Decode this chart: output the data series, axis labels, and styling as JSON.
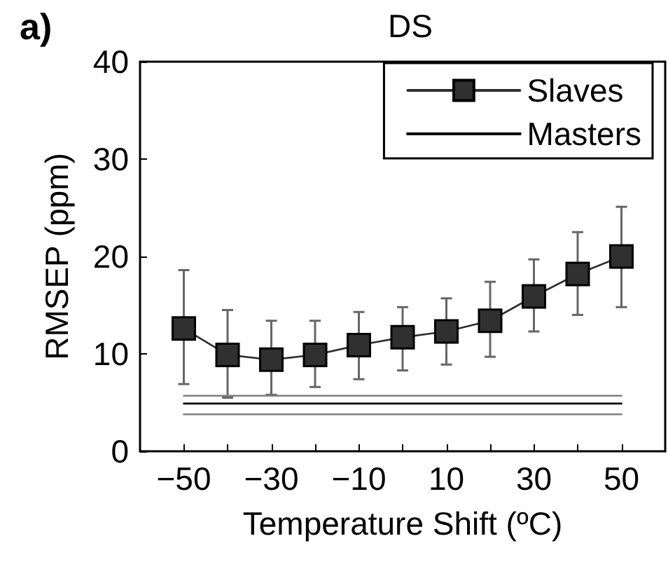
{
  "chart_data": {
    "type": "line",
    "title": "DS",
    "xlabel": "Temperature Shift (ºC)",
    "ylabel": "RMSEP (ppm)",
    "annotations": [
      "a)"
    ],
    "x": [
      -50,
      -40,
      -30,
      -20,
      -10,
      0,
      10,
      20,
      30,
      40,
      50
    ],
    "series": [
      {
        "name": "Slaves",
        "color": "#303030",
        "marker": "square",
        "values": [
          12.6,
          9.9,
          9.4,
          9.9,
          10.9,
          11.7,
          12.3,
          13.4,
          15.9,
          18.2,
          20.0
        ],
        "errors": [
          [
            6.9,
            18.6
          ],
          [
            5.5,
            14.5
          ],
          [
            5.8,
            13.4
          ],
          [
            6.6,
            13.4
          ],
          [
            7.4,
            14.3
          ],
          [
            8.3,
            14.8
          ],
          [
            8.9,
            15.7
          ],
          [
            9.7,
            17.4
          ],
          [
            12.3,
            19.7
          ],
          [
            14.0,
            22.5
          ],
          [
            14.8,
            25.1
          ]
        ]
      },
      {
        "name": "Masters",
        "color": "#000000",
        "marker": "none",
        "values": [
          4.9,
          4.9,
          4.9,
          4.9,
          4.9,
          4.9,
          4.9,
          4.9,
          4.9,
          4.9,
          4.9
        ]
      },
      {
        "color": "#808080",
        "marker": "none",
        "values": [
          5.7,
          5.7,
          5.7,
          5.7,
          5.7,
          5.7,
          5.7,
          5.7,
          5.7,
          5.7,
          5.7
        ]
      },
      {
        "color": "#808080",
        "marker": "none",
        "values": [
          3.8,
          3.8,
          3.8,
          3.8,
          3.8,
          3.8,
          3.8,
          3.8,
          3.8,
          3.8,
          3.8
        ]
      }
    ],
    "xlim": [
      -60,
      60
    ],
    "xticks": [
      -50,
      {
        "value": -40,
        "label": null
      },
      -30,
      {
        "value": -20,
        "label": null
      },
      -10,
      {
        "value": 0,
        "label": null
      },
      10,
      {
        "value": 20,
        "label": null
      },
      30,
      {
        "value": 40,
        "label": null
      },
      50
    ],
    "ylim": [
      0,
      40
    ],
    "yticks": [
      0,
      10,
      20,
      30,
      40
    ],
    "grid": false,
    "legend": "top right",
    "line_style": "solid"
  }
}
